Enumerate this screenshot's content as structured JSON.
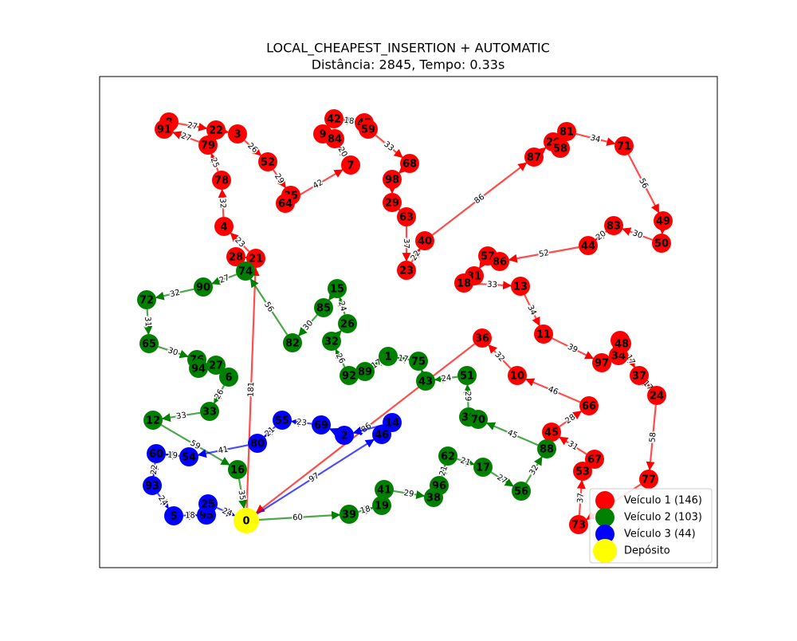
{
  "title": "LOCAL_CHEAPEST_INSERTION + AUTOMATIC",
  "subtitle": "Distância: 2845, Tempo: 0.33s",
  "depot": {
    "label": "0",
    "name": "Depósito",
    "color": "#ffff00"
  },
  "vehicles": [
    {
      "name": "Veículo 1 (146)",
      "color": "#ff0000",
      "nodes": [
        "8",
        "91",
        "22",
        "3",
        "79",
        "78",
        "4",
        "28",
        "21",
        "52",
        "35",
        "64",
        "7",
        "42",
        "9",
        "84",
        "47",
        "59",
        "68",
        "98",
        "29",
        "63",
        "40",
        "23",
        "87",
        "20",
        "81",
        "58",
        "71",
        "49",
        "50",
        "83",
        "44",
        "57",
        "86",
        "31",
        "18",
        "13",
        "11",
        "97",
        "34",
        "61",
        "48",
        "37",
        "24",
        "77",
        "67",
        "53",
        "73",
        "45",
        "66",
        "10",
        "36"
      ],
      "edge_labels": [
        181,
        23,
        32,
        25,
        27,
        27,
        26,
        29,
        42,
        20,
        18,
        33,
        37,
        22,
        86,
        34,
        56,
        30,
        20,
        52,
        33,
        34,
        39,
        17,
        17,
        58,
        37,
        31,
        28,
        46,
        32,
        186
      ]
    },
    {
      "name": "Veículo 2 (103)",
      "color": "#008000",
      "nodes": [
        "74",
        "90",
        "72",
        "65",
        "76",
        "94",
        "27",
        "6",
        "33",
        "12",
        "16",
        "82",
        "85",
        "15",
        "26",
        "32",
        "92",
        "89",
        "1",
        "75",
        "43",
        "51",
        "30",
        "70",
        "88",
        "56",
        "17",
        "62",
        "96",
        "38",
        "41",
        "19",
        "39"
      ],
      "edge_labels": [
        60,
        18,
        29,
        21,
        21,
        27,
        32,
        45,
        29,
        24,
        17,
        17,
        26,
        24,
        30,
        56,
        27,
        32,
        31,
        30,
        26,
        33,
        59,
        35
      ]
    },
    {
      "name": "Veículo 3 (44)",
      "color": "#0000ff",
      "nodes": [
        "55",
        "69",
        "2",
        "14",
        "46",
        "80",
        "54",
        "60",
        "93",
        "5",
        "95",
        "25"
      ],
      "edge_labels": [
        97,
        23,
        21,
        41,
        19,
        22,
        24,
        18,
        24
      ]
    }
  ]
}
